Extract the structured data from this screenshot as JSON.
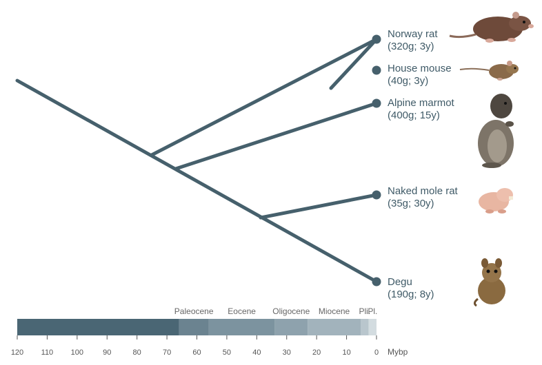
{
  "taxa": [
    {
      "name": "Norway rat",
      "traits": "(320g; 3y)",
      "icon": "norway-rat-icon"
    },
    {
      "name": "House mouse",
      "traits": "(40g; 3y)",
      "icon": "house-mouse-icon"
    },
    {
      "name": "Alpine marmot",
      "traits": "(400g; 15y)",
      "icon": "alpine-marmot-icon"
    },
    {
      "name": "Naked mole rat",
      "traits": "(35g; 30y)",
      "icon": "naked-mole-rat-icon"
    },
    {
      "name": "Degu",
      "traits": "(190g; 8y)",
      "icon": "degu-icon"
    }
  ],
  "timescale": {
    "unit": "Mybp",
    "ticks": [
      "120",
      "110",
      "100",
      "90",
      "80",
      "70",
      "60",
      "50",
      "40",
      "30",
      "20",
      "10",
      "0"
    ],
    "epochs": [
      {
        "name": "Paleocene",
        "start": 66,
        "end": 56,
        "color": "#6b8390"
      },
      {
        "name": "Eocene",
        "start": 56,
        "end": 34,
        "color": "#7c939f"
      },
      {
        "name": "Oligocene",
        "start": 34,
        "end": 23,
        "color": "#8ea2ad"
      },
      {
        "name": "Miocene",
        "start": 23,
        "end": 5.3,
        "color": "#a2b3bc"
      },
      {
        "name": "Pli.",
        "start": 5.3,
        "end": 2.6,
        "color": "#b9c6cd"
      },
      {
        "name": "Pl.",
        "start": 2.6,
        "end": 0,
        "color": "#d3dce0"
      }
    ],
    "pre_paleogene_color": "#4a6674"
  },
  "colors": {
    "branch": "#46606c",
    "text": "#3f5a67",
    "tick": "#555555"
  }
}
